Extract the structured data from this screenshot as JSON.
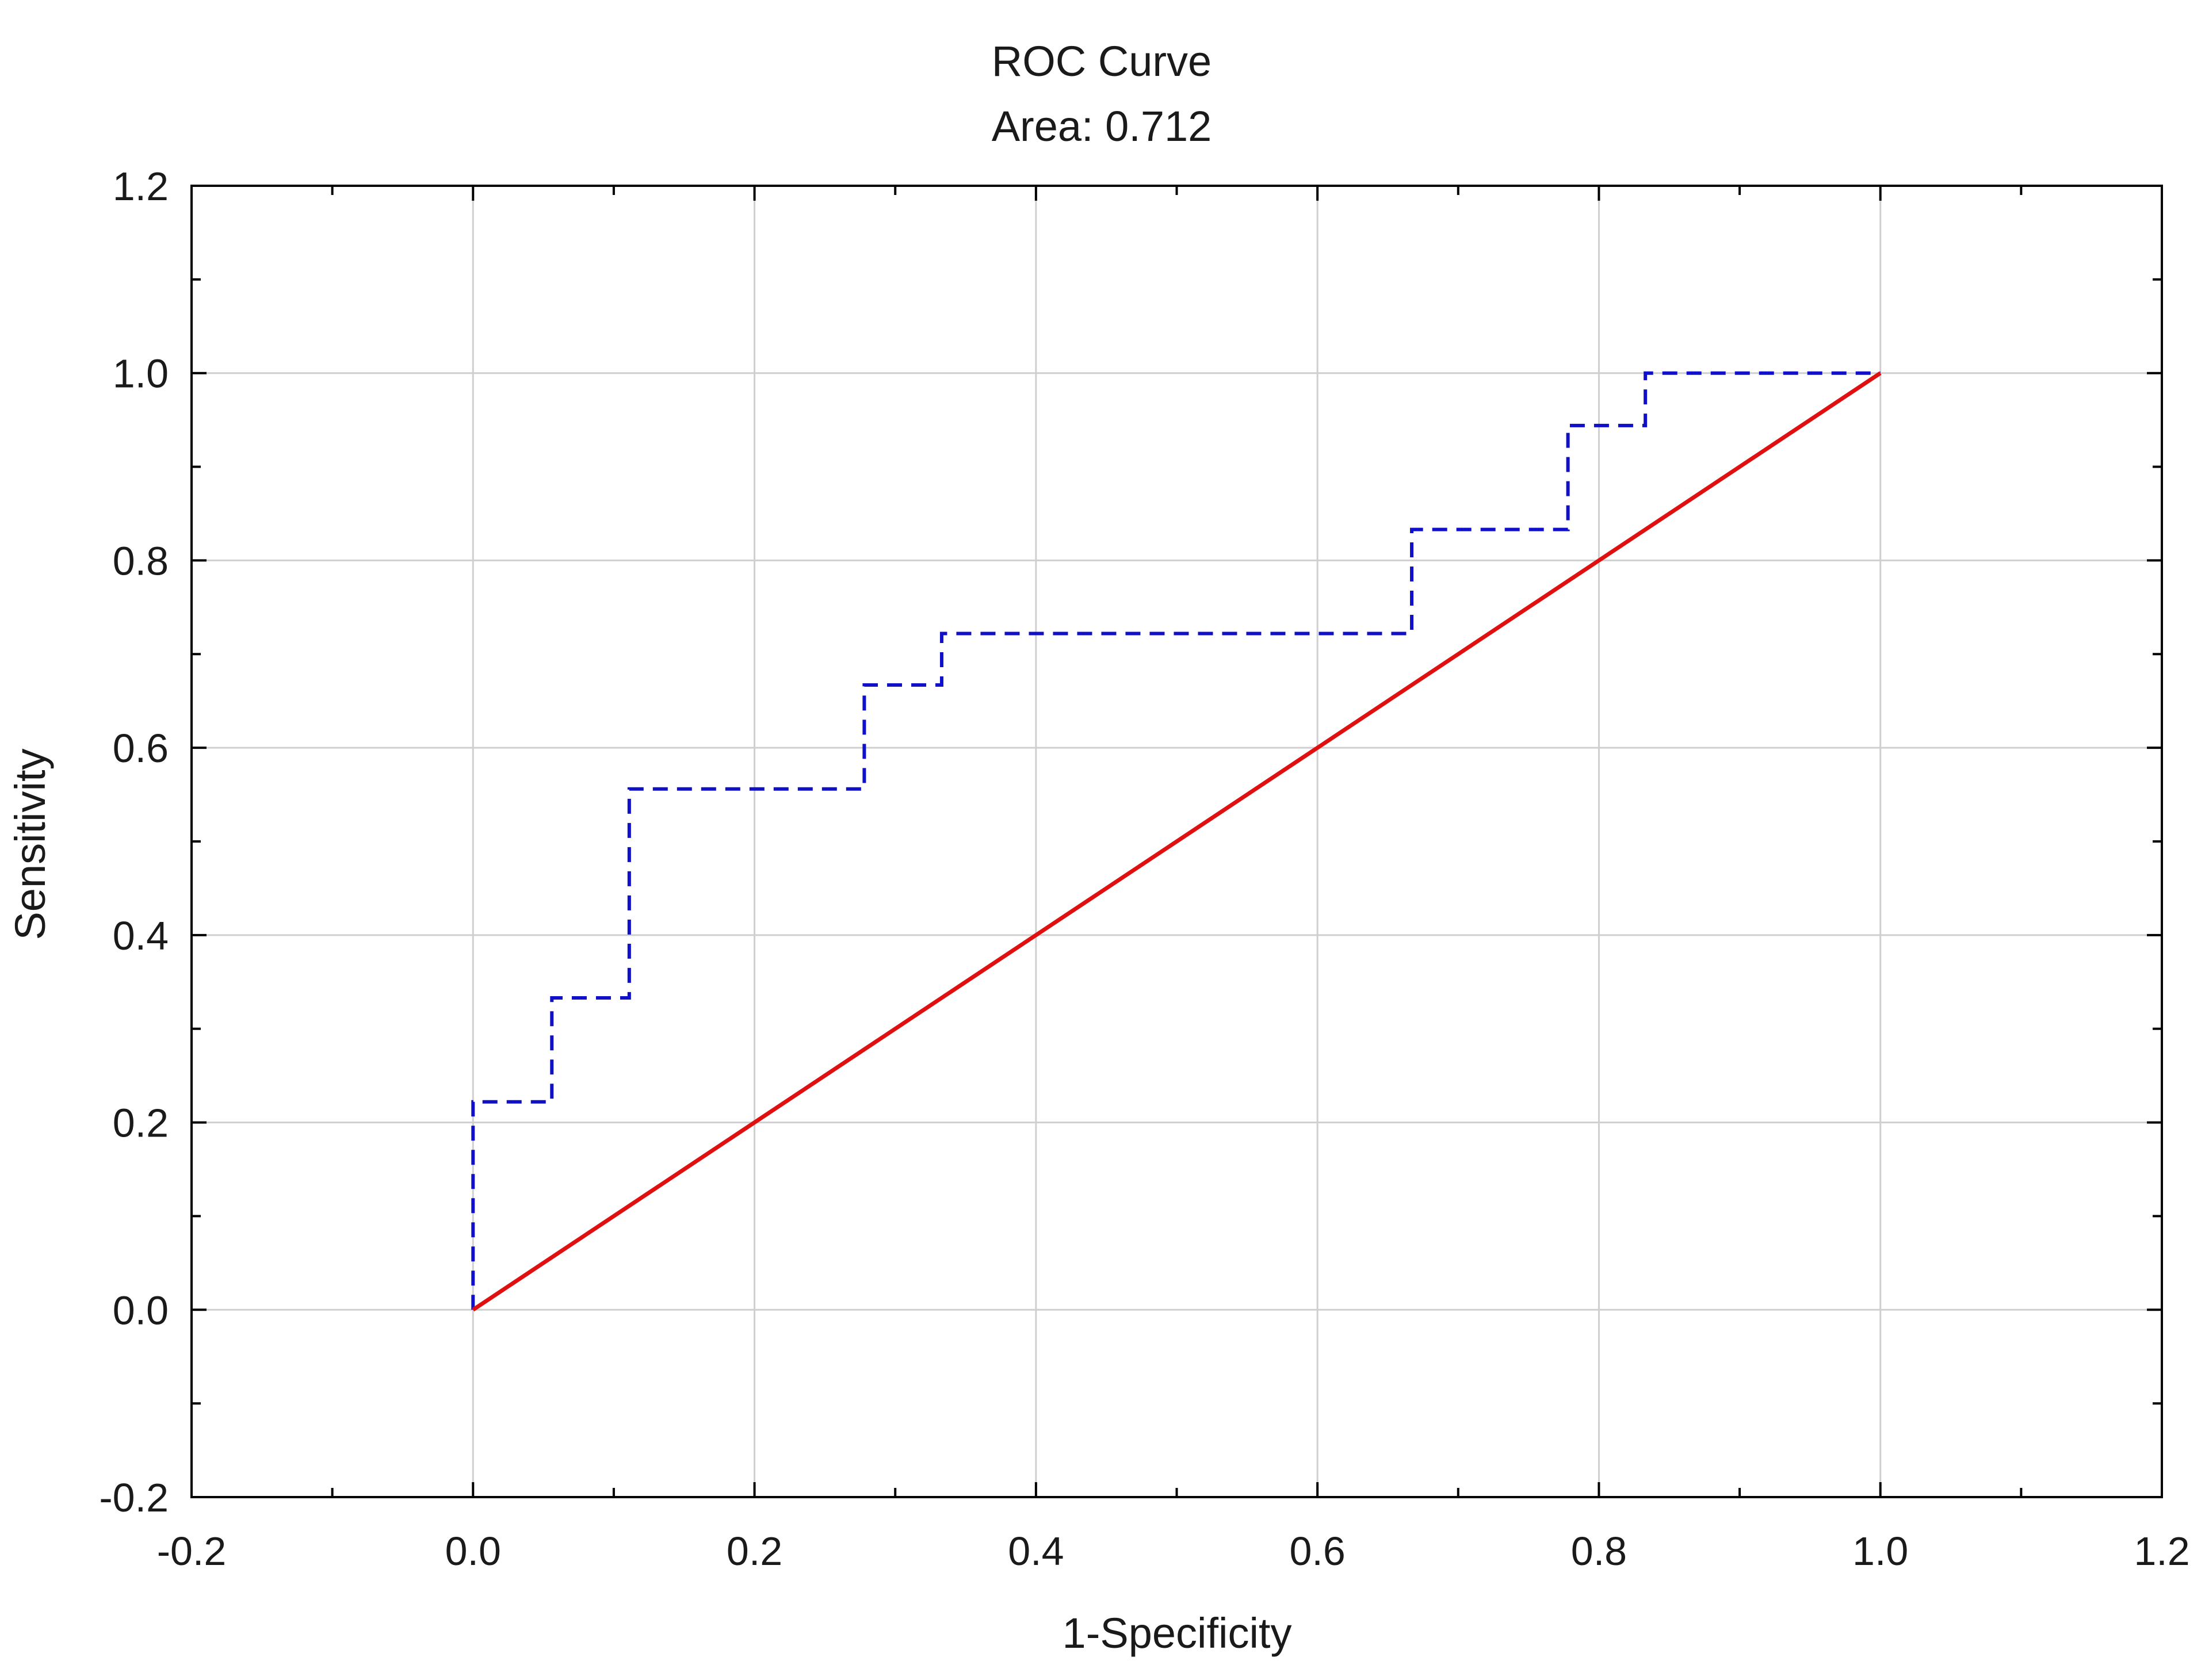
{
  "chart_data": {
    "type": "line",
    "title": "ROC Curve",
    "subtitle": "Area: 0.712",
    "xlabel": "1-Specificity",
    "ylabel": "Sensitivity",
    "xlim": [
      -0.2,
      1.2
    ],
    "ylim": [
      -0.2,
      1.2
    ],
    "x_ticks": [
      -0.2,
      0.0,
      0.2,
      0.4,
      0.6,
      0.8,
      1.0,
      1.2
    ],
    "y_ticks": [
      -0.2,
      0.0,
      0.2,
      0.4,
      0.6,
      0.8,
      1.0,
      1.2
    ],
    "x_tick_labels": [
      "-0.2",
      "0.0",
      "0.2",
      "0.4",
      "0.6",
      "0.8",
      "1.0",
      "1.2"
    ],
    "y_tick_labels": [
      "-0.2",
      "0.0",
      "0.2",
      "0.4",
      "0.6",
      "0.8",
      "1.0",
      "1.2"
    ],
    "grid": true,
    "series": [
      {
        "style": "dashed",
        "color": "#1010c8",
        "points": [
          [
            0.0,
            0.0
          ],
          [
            0.0,
            0.222
          ],
          [
            0.056,
            0.222
          ],
          [
            0.056,
            0.333
          ],
          [
            0.111,
            0.333
          ],
          [
            0.111,
            0.556
          ],
          [
            0.278,
            0.556
          ],
          [
            0.278,
            0.667
          ],
          [
            0.333,
            0.667
          ],
          [
            0.333,
            0.722
          ],
          [
            0.667,
            0.722
          ],
          [
            0.667,
            0.833
          ],
          [
            0.778,
            0.833
          ],
          [
            0.778,
            0.944
          ],
          [
            0.833,
            0.944
          ],
          [
            0.833,
            1.0
          ],
          [
            1.0,
            1.0
          ]
        ]
      },
      {
        "style": "solid",
        "color": "#e01010",
        "points": [
          [
            0.0,
            0.0
          ],
          [
            1.0,
            1.0
          ]
        ]
      }
    ]
  }
}
